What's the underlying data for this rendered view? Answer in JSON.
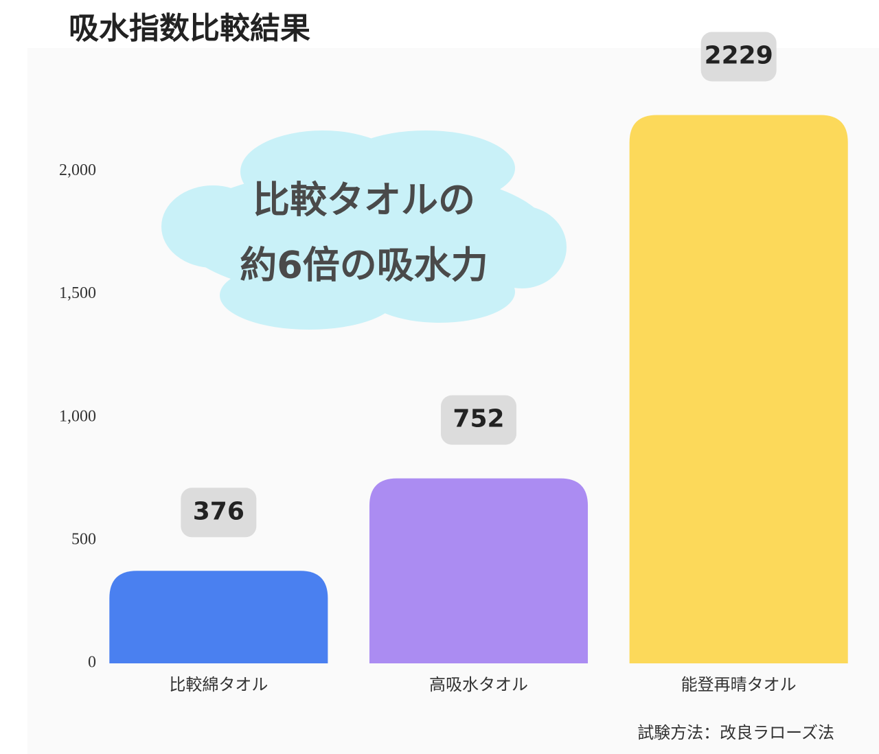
{
  "chart_data": {
    "type": "bar",
    "title": "吸水指数比較結果",
    "categories": [
      "比較綿タオル",
      "高吸水タオル",
      "能登再晴タオル"
    ],
    "values": [
      376,
      752,
      2229
    ],
    "colors": [
      "#4a80f0",
      "#ab8cf2",
      "#fcd95a"
    ],
    "ylim": [
      0,
      2250
    ],
    "yticks": [
      0,
      500,
      {
        "value": 1000,
        "label": "1,000"
      },
      {
        "value": 1500,
        "label": "1,500"
      },
      {
        "value": 2000,
        "label": "2,000"
      }
    ],
    "grid": false,
    "annotation": [
      "比較タオルの",
      "約6倍の吸水力"
    ],
    "footnote": "試験方法：改良ラローズ法"
  }
}
